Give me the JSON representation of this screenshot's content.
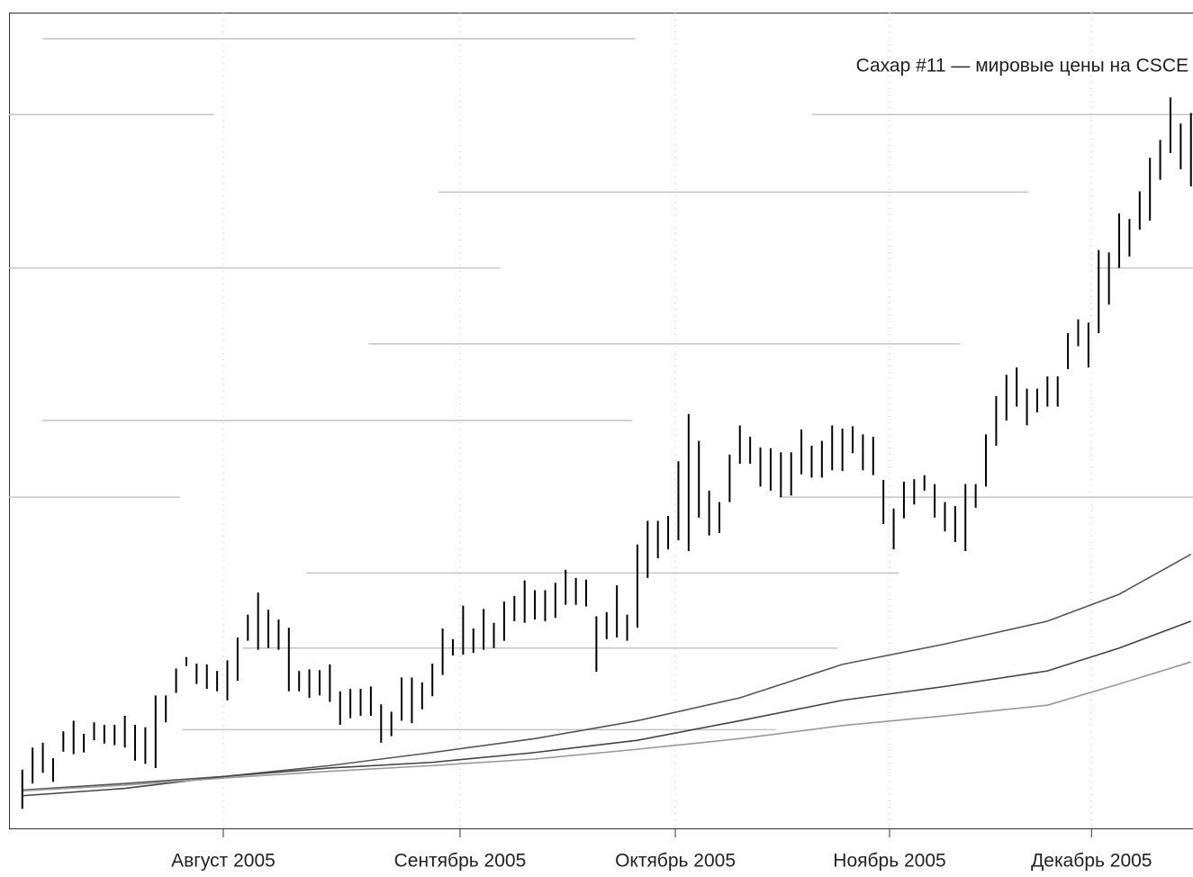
{
  "chart_data": {
    "type": "range-bar",
    "title": "Сахар #11 — мировые цены на CSCE",
    "xlim": [
      -1.3,
      114.2
    ],
    "ylim": [
      0,
      100
    ],
    "xticks": [
      {
        "value": 19.6,
        "label": "Август 2005"
      },
      {
        "value": 42.7,
        "label": "Сентябрь 2005"
      },
      {
        "value": 63.7,
        "label": "Октябрь 2005"
      },
      {
        "value": 84.6,
        "label": "Ноябрь 2005"
      },
      {
        "value": 104.3,
        "label": "Декабрь 2005"
      }
    ],
    "grid": true,
    "color": "#000000",
    "x": [
      0,
      1,
      2,
      3,
      4,
      5,
      6,
      7,
      8,
      9,
      10,
      11,
      12,
      13,
      14,
      15,
      16,
      17,
      18,
      19,
      20,
      21,
      22,
      23,
      24,
      25,
      26,
      27,
      28,
      29,
      30,
      31,
      32,
      33,
      34,
      35,
      36,
      37,
      38,
      39,
      40,
      41,
      42,
      43,
      44,
      45,
      46,
      47,
      48,
      49,
      50,
      51,
      52,
      53,
      54,
      55,
      56,
      57,
      58,
      59,
      60,
      61,
      62,
      63,
      64,
      65,
      66,
      67,
      68,
      69,
      70,
      71,
      72,
      73,
      74,
      75,
      76,
      77,
      78,
      79,
      80,
      81,
      82,
      83,
      84,
      85,
      86,
      87,
      88,
      89,
      90,
      91,
      92,
      93,
      94,
      95,
      96,
      97,
      98,
      99,
      100,
      101,
      102,
      103,
      104,
      105,
      106,
      107,
      108,
      109,
      110,
      111,
      112,
      113,
      114
    ],
    "high": [
      7.2,
      9.9,
      10.5,
      8.6,
      11.9,
      13.2,
      11.6,
      13.0,
      12.7,
      12.7,
      13.8,
      12.7,
      12.4,
      16.3,
      16.3,
      19.6,
      21.0,
      20.2,
      20.1,
      19.3,
      20.6,
      23.4,
      26.2,
      28.9,
      26.8,
      25.6,
      24.6,
      19.3,
      19.5,
      19.4,
      20.1,
      16.8,
      17.1,
      17.1,
      17.4,
      15.2,
      14.3,
      18.5,
      18.5,
      17.9,
      20.2,
      24.5,
      23.2,
      27.3,
      24.5,
      26.9,
      25.2,
      27.8,
      28.5,
      30.4,
      29.2,
      29.2,
      30.1,
      31.7,
      30.7,
      30.5,
      26.0,
      26.5,
      29.8,
      26.2,
      34.8,
      37.7,
      37.7,
      38.3,
      45.0,
      50.8,
      47.5,
      41.4,
      40.0,
      45.8,
      49.4,
      48.0,
      46.7,
      46.6,
      46.1,
      46.1,
      48.9,
      46.9,
      47.5,
      49.4,
      49.0,
      49.3,
      48.3,
      48.0,
      42.7,
      39.2,
      42.5,
      42.8,
      43.3,
      42.2,
      40.0,
      39.5,
      42.2,
      42.2,
      48.3,
      53.0,
      55.6,
      56.5,
      53.9,
      53.9,
      55.4,
      55.4,
      60.7,
      62.4,
      62.0,
      70.9,
      70.6,
      75.4,
      74.7,
      78.1,
      82.2,
      84.4,
      89.6,
      86.4,
      87.7
    ],
    "low": [
      2.4,
      5.5,
      6.8,
      5.7,
      9.4,
      9.1,
      9.3,
      10.8,
      10.4,
      10.2,
      9.9,
      8.3,
      7.9,
      7.4,
      13.0,
      16.6,
      19.9,
      17.7,
      17.1,
      16.8,
      15.7,
      18.1,
      23.0,
      21.9,
      22.1,
      21.9,
      16.8,
      16.8,
      16.0,
      16.3,
      15.5,
      12.7,
      13.5,
      13.8,
      13.8,
      10.5,
      11.3,
      13.2,
      12.9,
      14.6,
      16.2,
      18.8,
      21.2,
      21.3,
      21.5,
      21.9,
      22.1,
      23.0,
      25.4,
      25.2,
      25.6,
      25.4,
      25.8,
      27.4,
      27.4,
      27.2,
      19.2,
      23.2,
      23.4,
      23.0,
      24.6,
      30.7,
      33.1,
      34.2,
      35.3,
      34.0,
      38.1,
      35.9,
      36.2,
      40.0,
      44.7,
      44.7,
      41.9,
      41.4,
      40.6,
      40.8,
      43.4,
      43.0,
      43.0,
      43.9,
      43.8,
      46.0,
      43.9,
      43.3,
      37.3,
      34.2,
      38.0,
      39.7,
      41.4,
      38.1,
      36.4,
      35.1,
      34.0,
      39.3,
      41.9,
      46.9,
      50.0,
      51.7,
      49.4,
      51.0,
      51.7,
      51.7,
      56.3,
      59.1,
      56.5,
      60.7,
      64.2,
      68.7,
      70.1,
      73.4,
      74.5,
      79.5,
      82.8,
      80.8,
      78.7
    ],
    "moving_averages": [
      {
        "color": "#555555",
        "x": [
          0,
          10,
          20,
          30,
          40,
          50,
          60,
          70,
          80,
          90,
          100,
          107,
          114
        ],
        "values": [
          4.7,
          5.5,
          6.4,
          7.7,
          9.3,
          11.0,
          13.2,
          16.0,
          20.1,
          22.6,
          25.4,
          28.7,
          33.6
        ]
      },
      {
        "color": "#444444",
        "x": [
          0,
          10,
          20,
          30,
          40,
          50,
          60,
          70,
          80,
          90,
          100,
          107,
          114
        ],
        "values": [
          4.0,
          4.9,
          6.4,
          7.4,
          8.1,
          9.3,
          10.8,
          13.2,
          15.7,
          17.4,
          19.3,
          22.1,
          25.4
        ]
      },
      {
        "color": "#999999",
        "x": [
          0,
          10,
          20,
          30,
          40,
          50,
          60,
          70,
          80,
          90,
          100,
          107,
          114
        ],
        "values": [
          4.6,
          5.3,
          6.2,
          7.0,
          7.7,
          8.5,
          9.7,
          11.0,
          12.6,
          13.8,
          15.1,
          17.7,
          20.4
        ]
      }
    ],
    "levels": [
      {
        "x": [
          2.0,
          59.8
        ],
        "value": 96.8
      },
      {
        "x": [
          -1.3,
          18.7
        ],
        "value": 87.5
      },
      {
        "x": [
          77.0,
          114.2
        ],
        "value": 87.5
      },
      {
        "x": [
          40.6,
          98.2
        ],
        "value": 78.0
      },
      {
        "x": [
          -1.3,
          46.6
        ],
        "value": 68.7
      },
      {
        "x": [
          104.8,
          114.2
        ],
        "value": 68.7
      },
      {
        "x": [
          33.8,
          91.5
        ],
        "value": 59.4
      },
      {
        "x": [
          1.9,
          59.5
        ],
        "value": 50.0
      },
      {
        "x": [
          -1.3,
          15.4
        ],
        "value": 40.6
      },
      {
        "x": [
          73.8,
          114.2
        ],
        "value": 40.6
      },
      {
        "x": [
          27.7,
          85.5
        ],
        "value": 31.3
      },
      {
        "x": [
          21.5,
          79.5
        ],
        "value": 22.1
      },
      {
        "x": [
          15.6,
          73.5
        ],
        "value": 12.1
      }
    ],
    "level_color": "#c4c4c4"
  }
}
